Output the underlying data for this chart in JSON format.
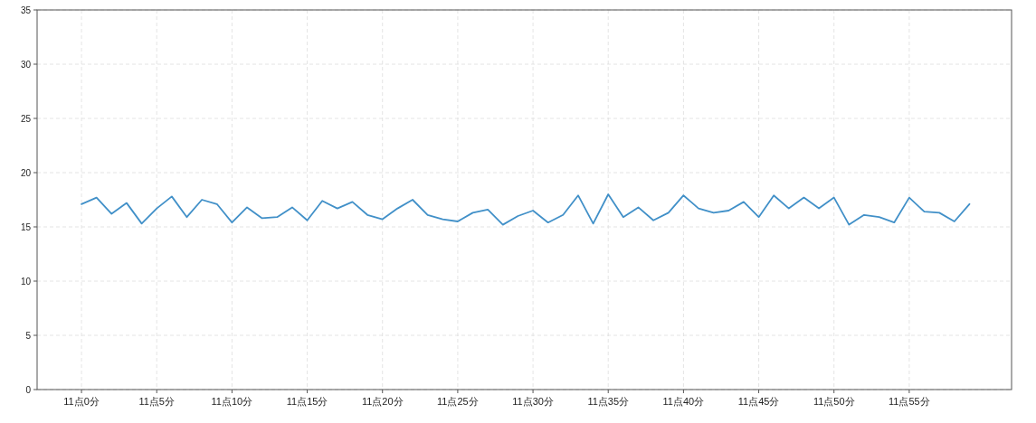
{
  "chart_data": {
    "type": "line",
    "categories": [
      "11点0分",
      null,
      null,
      null,
      null,
      "11点5分",
      null,
      null,
      null,
      null,
      "11点10分",
      null,
      null,
      null,
      null,
      "11点15分",
      null,
      null,
      null,
      null,
      "11点20分",
      null,
      null,
      null,
      null,
      "11点25分",
      null,
      null,
      null,
      null,
      "11点30分",
      null,
      null,
      null,
      null,
      "11点35分",
      null,
      null,
      null,
      null,
      "11点40分",
      null,
      null,
      null,
      null,
      "11点45分",
      null,
      null,
      null,
      null,
      "11点50分",
      null,
      null,
      null,
      null,
      "11点55分",
      null,
      null,
      null,
      null
    ],
    "values": [
      17.1,
      17.7,
      16.2,
      17.2,
      15.3,
      16.7,
      17.8,
      15.9,
      17.5,
      17.1,
      15.4,
      16.8,
      15.8,
      15.9,
      16.8,
      15.6,
      17.4,
      16.7,
      17.3,
      16.1,
      15.7,
      16.7,
      17.5,
      16.1,
      15.7,
      15.5,
      16.3,
      16.6,
      15.2,
      16.0,
      16.5,
      15.4,
      16.1,
      17.9,
      15.3,
      18.0,
      15.9,
      16.8,
      15.6,
      16.3,
      17.9,
      16.7,
      16.3,
      16.5,
      17.3,
      15.9,
      17.9,
      16.7,
      17.7,
      16.7,
      17.7,
      15.2,
      16.1,
      15.9,
      15.4,
      17.7,
      16.4,
      16.3,
      15.5,
      17.1
    ],
    "color": "#4190c8",
    "ylim": [
      0,
      35
    ],
    "yticks": [
      0,
      5,
      10,
      15,
      20,
      25,
      30,
      35
    ],
    "grid": true
  }
}
